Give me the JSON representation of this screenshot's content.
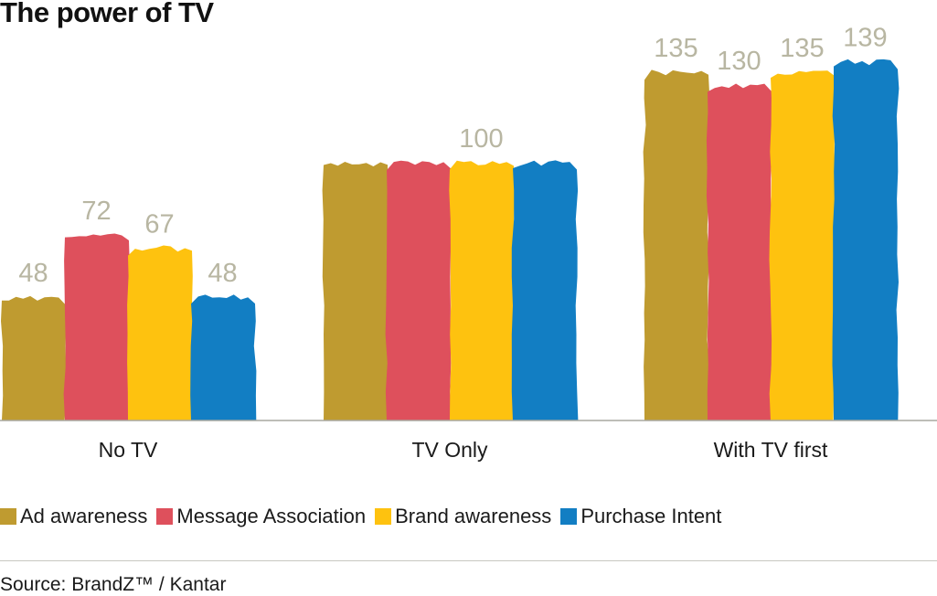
{
  "chart_data": {
    "type": "bar",
    "title": "The power of TV",
    "categories": [
      "No TV",
      "TV Only",
      "With TV first"
    ],
    "series": [
      {
        "name": "Ad awareness",
        "color": "#BF9B30",
        "values": [
          48,
          100,
          135
        ],
        "labels": [
          "48",
          "",
          "135"
        ]
      },
      {
        "name": "Message Association",
        "color": "#DE505C",
        "values": [
          72,
          100,
          130
        ],
        "labels": [
          "72",
          "",
          "130"
        ]
      },
      {
        "name": "Brand awareness",
        "color": "#FEC20F",
        "values": [
          67,
          100,
          135
        ],
        "labels": [
          "67",
          "100",
          "135"
        ]
      },
      {
        "name": "Purchase Intent",
        "color": "#127EC3",
        "values": [
          48,
          100,
          139
        ],
        "labels": [
          "48",
          "",
          "139"
        ]
      }
    ],
    "ylim": [
      0,
      139
    ],
    "grid": false,
    "legend_position": "bottom",
    "data_label_color": "#B8B6A2",
    "axis_color": "#A8A8A0"
  },
  "source": "Source: BrandZ™ / Kantar"
}
